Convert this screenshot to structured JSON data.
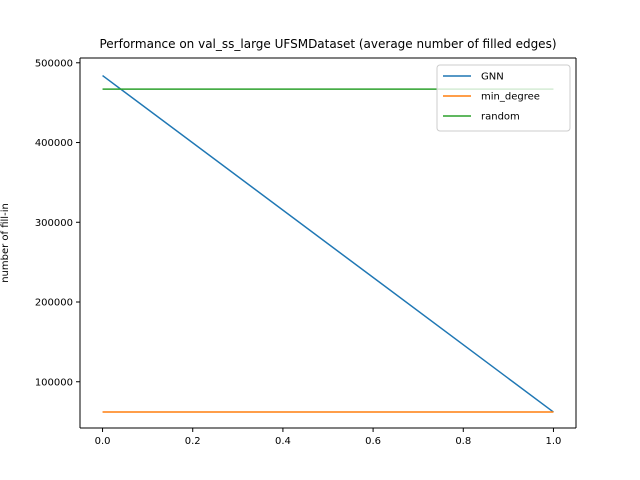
{
  "chart_data": {
    "type": "line",
    "title": "Performance on val_ss_large UFSMDataset (average number of filled edges)",
    "xlabel": "",
    "ylabel": "number of fill-in",
    "xlim": [
      -0.05,
      1.05
    ],
    "ylim": [
      42000,
      506000
    ],
    "x_ticks": [
      0.0,
      0.2,
      0.4,
      0.6,
      0.8,
      1.0
    ],
    "x_tick_labels": [
      "0.0",
      "0.2",
      "0.4",
      "0.6",
      "0.8",
      "1.0"
    ],
    "y_ticks": [
      100000,
      200000,
      300000,
      400000,
      500000
    ],
    "y_tick_labels": [
      "100000",
      "200000",
      "300000",
      "400000",
      "500000"
    ],
    "grid": false,
    "legend_position": "top-right",
    "series": [
      {
        "name": "GNN",
        "color": "#1f77b4",
        "x": [
          0,
          1
        ],
        "y": [
          484000,
          62000
        ]
      },
      {
        "name": "min_degree",
        "color": "#ff7f0e",
        "x": [
          0,
          1
        ],
        "y": [
          62000,
          62000
        ]
      },
      {
        "name": "random",
        "color": "#2ca02c",
        "x": [
          0,
          1
        ],
        "y": [
          467000,
          467000
        ]
      }
    ]
  }
}
